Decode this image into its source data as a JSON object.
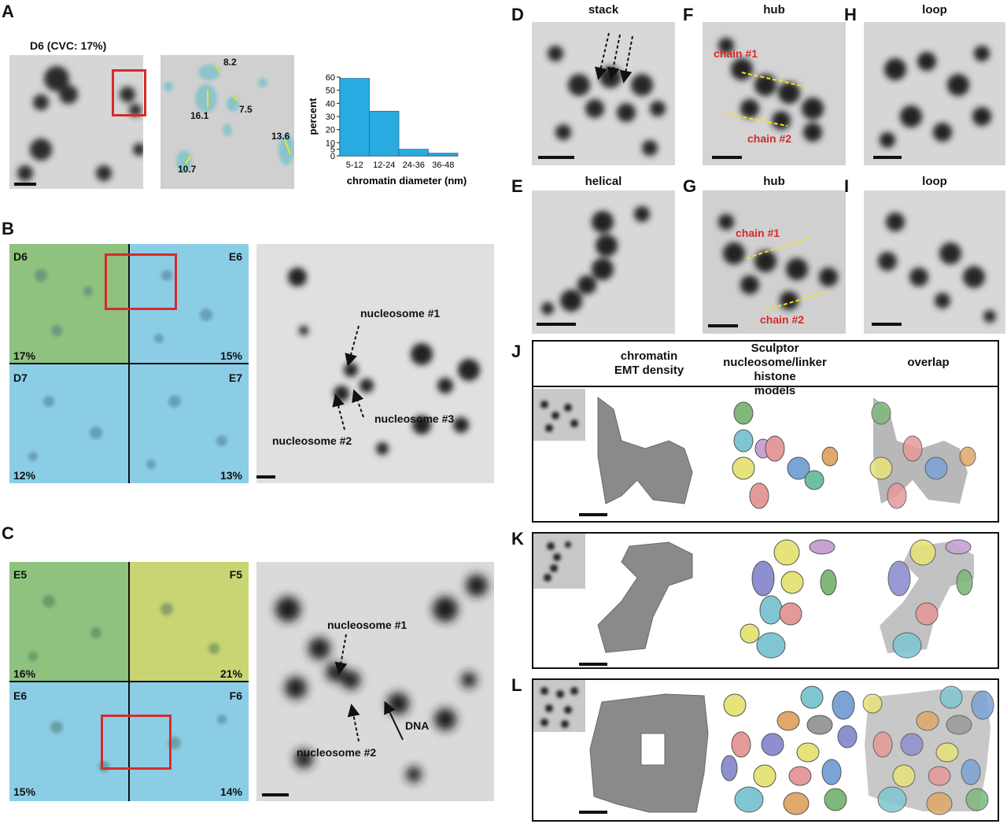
{
  "panels": {
    "A": {
      "letter": "A",
      "title": "D6 (CVC: 17%)",
      "measurements": [
        "8.2",
        "7.5",
        "16.1",
        "13.6",
        "10.7"
      ]
    },
    "B": {
      "letter": "B",
      "tiles": [
        {
          "name": "D6",
          "pct": "17%"
        },
        {
          "name": "E6",
          "pct": "15%"
        },
        {
          "name": "D7",
          "pct": "12%"
        },
        {
          "name": "E7",
          "pct": "13%"
        }
      ],
      "labels": [
        "nucleosome #1",
        "nucleosome #2",
        "nucleosome #3"
      ]
    },
    "C": {
      "letter": "C",
      "tiles": [
        {
          "name": "E5",
          "pct": "16%"
        },
        {
          "name": "F5",
          "pct": "21%"
        },
        {
          "name": "E6",
          "pct": "15%"
        },
        {
          "name": "F6",
          "pct": "14%"
        }
      ],
      "labels": [
        "nucleosome #1",
        "nucleosome #2",
        "DNA"
      ]
    },
    "D": {
      "letter": "D",
      "title": "stack"
    },
    "E": {
      "letter": "E",
      "title": "helical"
    },
    "F": {
      "letter": "F",
      "title": "hub",
      "chain1": "chain #1",
      "chain2": "chain #2"
    },
    "G": {
      "letter": "G",
      "title": "hub",
      "chain1": "chain #1",
      "chain2": "chain #2"
    },
    "H": {
      "letter": "H",
      "title": "loop"
    },
    "I": {
      "letter": "I",
      "title": "loop"
    },
    "J": {
      "letter": "J",
      "col1": "chromatin\nEMT density",
      "col2": "Sculptor\nnucleosome/linker histone\nmodels",
      "col3": "overlap"
    },
    "K": {
      "letter": "K"
    },
    "L": {
      "letter": "L"
    }
  },
  "chart_data": {
    "type": "bar",
    "categories": [
      "5-12",
      "12-24",
      "24-36",
      "36-48"
    ],
    "values": [
      59,
      34,
      5,
      2
    ],
    "xlabel": "chromatin diameter (nm)",
    "ylabel": "percent",
    "ylim": [
      0,
      60
    ],
    "yticks": [
      0,
      5,
      10,
      20,
      30,
      40,
      50,
      60
    ],
    "color": "#29abe2"
  },
  "colors": {
    "green": "#8fc27e",
    "blue": "#8ccde6",
    "yellow": "#c9d472",
    "red": "#d62a2a",
    "yellowline": "#f2e21b"
  }
}
